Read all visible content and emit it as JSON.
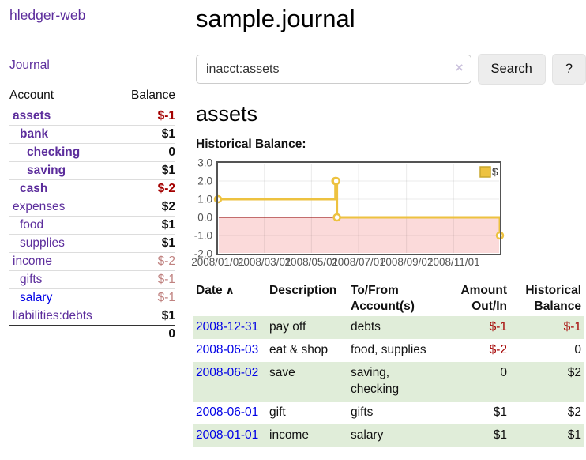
{
  "app": {
    "brand": "hledger-web",
    "nav_journal": "Journal"
  },
  "colors": {
    "link_purple": "#5c2d9c",
    "link_blue": "#0000e6",
    "negative_strong": "#a40000",
    "negative_soft": "#c08280",
    "row_stripe_green": "#e0edd9",
    "chart_gold": "#edc240",
    "chart_negative_pink": "#fbdada",
    "zero_line_red": "#8b0000"
  },
  "sidebar": {
    "header": {
      "account": "Account",
      "balance": "Balance"
    },
    "accounts": [
      {
        "name": "assets",
        "balance": "$-1",
        "depth": 1,
        "bold": true,
        "unvisited": false
      },
      {
        "name": "bank",
        "balance": "$1",
        "depth": 2,
        "bold": true,
        "unvisited": false
      },
      {
        "name": "checking",
        "balance": "0",
        "depth": 3,
        "bold": true,
        "unvisited": false
      },
      {
        "name": "saving",
        "balance": "$1",
        "depth": 3,
        "bold": true,
        "unvisited": false
      },
      {
        "name": "cash",
        "balance": "$-2",
        "depth": 2,
        "bold": true,
        "unvisited": false
      },
      {
        "name": "expenses",
        "balance": "$2",
        "depth": 1,
        "bold": false,
        "unvisited": false
      },
      {
        "name": "food",
        "balance": "$1",
        "depth": 2,
        "bold": false,
        "unvisited": false
      },
      {
        "name": "supplies",
        "balance": "$1",
        "depth": 2,
        "bold": false,
        "unvisited": false
      },
      {
        "name": "income",
        "balance": "$-2",
        "depth": 1,
        "bold": false,
        "unvisited": false
      },
      {
        "name": "gifts",
        "balance": "$-1",
        "depth": 2,
        "bold": false,
        "unvisited": false
      },
      {
        "name": "salary",
        "balance": "$-1",
        "depth": 2,
        "bold": false,
        "unvisited": true
      },
      {
        "name": "liabilities:debts",
        "balance": "$1",
        "depth": 1,
        "bold": false,
        "unvisited": false
      }
    ],
    "total": "0"
  },
  "main": {
    "title": "sample.journal",
    "search": {
      "value": "inacct:assets",
      "clear_icon": "×",
      "button_label": "Search",
      "help_label": "?"
    },
    "account_heading": "assets",
    "chart_label": "Historical Balance:"
  },
  "chart_data": {
    "type": "line",
    "title": "Historical Balance:",
    "x_domain": [
      "2008-01-01",
      "2008-12-31"
    ],
    "ylim": [
      -2,
      3
    ],
    "y_ticks": [
      "3.0",
      "2.0",
      "1.0",
      "0.0",
      "-1.0",
      "-2.0"
    ],
    "x_ticks": [
      "2008/01/01",
      "2008/03/01",
      "2008/05/01",
      "2008/07/01",
      "2008/09/01",
      "2008/11/01"
    ],
    "series": [
      {
        "name": "$",
        "color": "#edc240",
        "style": "step-after",
        "points": [
          [
            "2008-01-01",
            1
          ],
          [
            "2008-06-01",
            2
          ],
          [
            "2008-06-02",
            2
          ],
          [
            "2008-06-03",
            0
          ],
          [
            "2008-12-31",
            -1
          ]
        ]
      }
    ],
    "legend_position": "top-right",
    "zero_line_color": "#8b0000",
    "negative_region_color": "#fbdada",
    "grid": true
  },
  "register": {
    "headers": [
      "Date",
      "Description",
      "To/From Account(s)",
      "Amount Out/In",
      "Historical Balance"
    ],
    "sort_column": "Date",
    "sort_indicator": "∧",
    "rows": [
      {
        "date": "2008-12-31",
        "description": "pay off",
        "accounts": "debts",
        "amount": "$-1",
        "balance": "$-1"
      },
      {
        "date": "2008-06-03",
        "description": "eat & shop",
        "accounts": "food, supplies",
        "amount": "$-2",
        "balance": "0"
      },
      {
        "date": "2008-06-02",
        "description": "save",
        "accounts": "saving, checking",
        "amount": "0",
        "balance": "$2"
      },
      {
        "date": "2008-06-01",
        "description": "gift",
        "accounts": "gifts",
        "amount": "$1",
        "balance": "$2"
      },
      {
        "date": "2008-01-01",
        "description": "income",
        "accounts": "salary",
        "amount": "$1",
        "balance": "$1"
      }
    ]
  }
}
